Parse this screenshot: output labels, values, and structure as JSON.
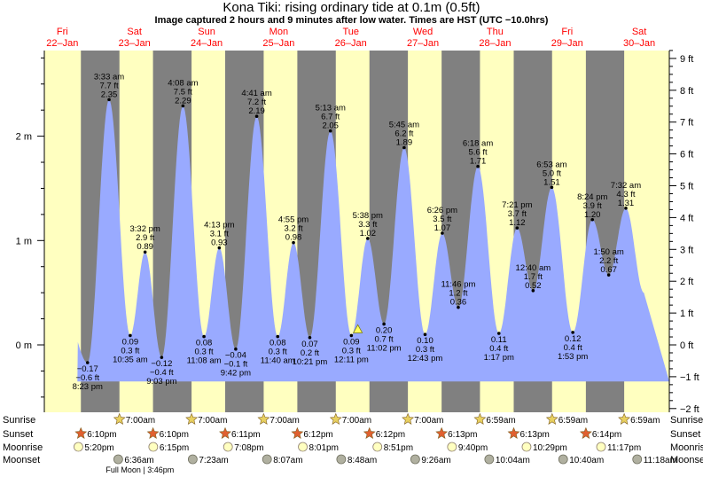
{
  "header": {
    "title": "Kona Tiki: rising  ordinary tide at 0.1m (0.5ft)",
    "subtitle": "Image captured 2 hours and 9 minutes after low water. Times are HST (UTC −10.0hrs)"
  },
  "chart_data": {
    "type": "area",
    "title": "Kona Tiki: rising  ordinary tide at 0.1m (0.5ft)",
    "days": [
      {
        "dow": "Fri",
        "date": "22–Jan"
      },
      {
        "dow": "Sat",
        "date": "23–Jan"
      },
      {
        "dow": "Sun",
        "date": "24–Jan"
      },
      {
        "dow": "Mon",
        "date": "25–Jan"
      },
      {
        "dow": "Tue",
        "date": "26–Jan"
      },
      {
        "dow": "Wed",
        "date": "27–Jan"
      },
      {
        "dow": "Thu",
        "date": "28–Jan"
      },
      {
        "dow": "Fri",
        "date": "29–Jan"
      },
      {
        "dow": "Sat",
        "date": "30–Jan"
      }
    ],
    "y_left": {
      "ticks": [
        "2 m",
        "1 m",
        "0 m"
      ],
      "values": [
        2,
        1,
        0
      ],
      "ylim_m": [
        -0.61,
        2.8
      ]
    },
    "y_right": {
      "ticks": [
        "9 ft",
        "8 ft",
        "7 ft",
        "6 ft",
        "5 ft",
        "4 ft",
        "3 ft",
        "2 ft",
        "1 ft",
        "0 ft",
        "−1 ft",
        "−2 ft"
      ],
      "values": [
        9,
        8,
        7,
        6,
        5,
        4,
        3,
        2,
        1,
        0,
        -1,
        -2
      ]
    },
    "day_hours_axis": {
      "start": "2021-01-22 06:00",
      "end": "2021-01-30 22:00"
    },
    "night_bands": [
      [
        "2021-01-22 18:10",
        "2021-01-23 07:00"
      ],
      [
        "2021-01-23 18:10",
        "2021-01-24 07:00"
      ],
      [
        "2021-01-24 18:11",
        "2021-01-25 07:00"
      ],
      [
        "2021-01-25 18:12",
        "2021-01-26 07:00"
      ],
      [
        "2021-01-26 18:12",
        "2021-01-27 07:00"
      ],
      [
        "2021-01-27 18:13",
        "2021-01-28 06:59"
      ],
      [
        "2021-01-28 18:13",
        "2021-01-29 06:59"
      ],
      [
        "2021-01-29 18:14",
        "2021-01-30 06:59"
      ]
    ],
    "tides": [
      {
        "t": "2021-01-22 20:23",
        "m": -0.17,
        "ft": "−0.6 ft",
        "time": "8:23 pm",
        "mlabel": "−0.17",
        "above": false
      },
      {
        "t": "2021-01-23 03:33",
        "m": 2.35,
        "ft": "7.7 ft",
        "time": "3:33 am",
        "mlabel": "2.35 m",
        "above": true
      },
      {
        "t": "2021-01-23 10:35",
        "m": 0.09,
        "ft": "0.3 ft",
        "time": "10:35 am",
        "mlabel": "0.09 m",
        "above": false
      },
      {
        "t": "2021-01-23 15:32",
        "m": 0.89,
        "ft": "2.9 ft",
        "time": "3:32 pm",
        "mlabel": "0.89 m",
        "above": true
      },
      {
        "t": "2021-01-23 21:03",
        "m": -0.12,
        "ft": "−0.4 ft",
        "time": "9:03 pm",
        "mlabel": "−0.12 m",
        "above": false
      },
      {
        "t": "2021-01-24 04:08",
        "m": 2.29,
        "ft": "7.5 ft",
        "time": "4:08 am",
        "mlabel": "2.29 m",
        "above": true
      },
      {
        "t": "2021-01-24 11:08",
        "m": 0.08,
        "ft": "0.3 ft",
        "time": "11:08 am",
        "mlabel": "0.08 m",
        "above": false
      },
      {
        "t": "2021-01-24 16:13",
        "m": 0.93,
        "ft": "3.1 ft",
        "time": "4:13 pm",
        "mlabel": "0.93 m",
        "above": true
      },
      {
        "t": "2021-01-24 21:42",
        "m": -0.04,
        "ft": "−0.1 ft",
        "time": "9:42 pm",
        "mlabel": "−0.04 m",
        "above": false
      },
      {
        "t": "2021-01-25 04:41",
        "m": 2.19,
        "ft": "7.2 ft",
        "time": "4:41 am",
        "mlabel": "2.19 m",
        "above": true
      },
      {
        "t": "2021-01-25 11:40",
        "m": 0.08,
        "ft": "0.3 ft",
        "time": "11:40 am",
        "mlabel": "0.08 m",
        "above": false
      },
      {
        "t": "2021-01-25 16:55",
        "m": 0.98,
        "ft": "3.2 ft",
        "time": "4:55 pm",
        "mlabel": "0.98 m",
        "above": true
      },
      {
        "t": "2021-01-25 22:21",
        "m": 0.07,
        "ft": "0.2 ft",
        "time": "10:21 pm",
        "mlabel": "0.07 m",
        "above": false
      },
      {
        "t": "2021-01-26 05:13",
        "m": 2.05,
        "ft": "6.7 ft",
        "time": "5:13 am",
        "mlabel": "2.05 m",
        "above": true
      },
      {
        "t": "2021-01-26 12:11",
        "m": 0.09,
        "ft": "0.3 ft",
        "time": "12:11 pm",
        "mlabel": "0.09 m",
        "above": false
      },
      {
        "t": "2021-01-26 17:38",
        "m": 1.02,
        "ft": "3.3 ft",
        "time": "5:38 pm",
        "mlabel": "1.02 m",
        "above": true
      },
      {
        "t": "2021-01-26 23:02",
        "m": 0.2,
        "ft": "0.7 ft",
        "time": "11:02 pm",
        "mlabel": "0.20 m",
        "above": false
      },
      {
        "t": "2021-01-27 05:45",
        "m": 1.89,
        "ft": "6.2 ft",
        "time": "5:45 am",
        "mlabel": "1.89 m",
        "above": true
      },
      {
        "t": "2021-01-27 12:43",
        "m": 0.1,
        "ft": "0.3 ft",
        "time": "12:43 pm",
        "mlabel": "0.10 m",
        "above": false
      },
      {
        "t": "2021-01-27 18:26",
        "m": 1.07,
        "ft": "3.5 ft",
        "time": "6:26 pm",
        "mlabel": "1.07 m",
        "above": true
      },
      {
        "t": "2021-01-27 23:46",
        "m": 0.36,
        "ft": "1.2 ft",
        "time": "11:46 pm",
        "mlabel": "0.36 m",
        "above": true
      },
      {
        "t": "2021-01-28 06:18",
        "m": 1.71,
        "ft": "5.6 ft",
        "time": "6:18 am",
        "mlabel": "1.71 m",
        "above": true
      },
      {
        "t": "2021-01-28 13:17",
        "m": 0.11,
        "ft": "0.4 ft",
        "time": "1:17 pm",
        "mlabel": "0.11 m",
        "above": false
      },
      {
        "t": "2021-01-28 19:21",
        "m": 1.12,
        "ft": "3.7 ft",
        "time": "7:21 pm",
        "mlabel": "1.12 m",
        "above": true
      },
      {
        "t": "2021-01-29 00:40",
        "m": 0.52,
        "ft": "1.7 ft",
        "time": "12:40 am",
        "mlabel": "0.52 m",
        "above": true
      },
      {
        "t": "2021-01-29 06:53",
        "m": 1.51,
        "ft": "5.0 ft",
        "time": "6:53 am",
        "mlabel": "1.51 m",
        "above": true
      },
      {
        "t": "2021-01-29 13:53",
        "m": 0.12,
        "ft": "0.4 ft",
        "time": "1:53 pm",
        "mlabel": "0.12 m",
        "above": false
      },
      {
        "t": "2021-01-29 20:24",
        "m": 1.2,
        "ft": "3.9 ft",
        "time": "8:24 pm",
        "mlabel": "1.20 m",
        "above": true
      },
      {
        "t": "2021-01-30 01:50",
        "m": 0.67,
        "ft": "2.2 ft",
        "time": "1:50 am",
        "mlabel": "0.67 m",
        "above": true
      },
      {
        "t": "2021-01-30 07:32",
        "m": 1.31,
        "ft": "4.3 ft",
        "time": "7:32 am",
        "mlabel": "1.31 m",
        "above": true
      }
    ],
    "current_marker": {
      "t": "2021-01-26 14:20",
      "m": 0.15
    },
    "rows": {
      "sunrise_label": "Sunrise",
      "sunset_label": "Sunset",
      "moonrise_label": "Moonrise",
      "moonset_label": "Moonset",
      "sunrise": [
        {
          "t": "2021-01-23 07:00",
          "text": "7:00am"
        },
        {
          "t": "2021-01-24 07:00",
          "text": "7:00am"
        },
        {
          "t": "2021-01-25 07:00",
          "text": "7:00am"
        },
        {
          "t": "2021-01-26 07:00",
          "text": "7:00am"
        },
        {
          "t": "2021-01-27 07:00",
          "text": "7:00am"
        },
        {
          "t": "2021-01-28 06:59",
          "text": "6:59am"
        },
        {
          "t": "2021-01-29 06:59",
          "text": "6:59am"
        },
        {
          "t": "2021-01-30 06:59",
          "text": "6:59am"
        }
      ],
      "sunset": [
        {
          "t": "2021-01-22 18:10",
          "text": "6:10pm"
        },
        {
          "t": "2021-01-23 18:10",
          "text": "6:10pm"
        },
        {
          "t": "2021-01-24 18:11",
          "text": "6:11pm"
        },
        {
          "t": "2021-01-25 18:12",
          "text": "6:12pm"
        },
        {
          "t": "2021-01-26 18:12",
          "text": "6:12pm"
        },
        {
          "t": "2021-01-27 18:13",
          "text": "6:13pm"
        },
        {
          "t": "2021-01-28 18:13",
          "text": "6:13pm"
        },
        {
          "t": "2021-01-29 18:14",
          "text": "6:14pm"
        }
      ],
      "moonrise": [
        {
          "t": "2021-01-22 17:20",
          "text": "5:20pm"
        },
        {
          "t": "2021-01-23 18:15",
          "text": "6:15pm"
        },
        {
          "t": "2021-01-24 19:08",
          "text": "7:08pm"
        },
        {
          "t": "2021-01-25 20:01",
          "text": "8:01pm"
        },
        {
          "t": "2021-01-26 20:51",
          "text": "8:51pm"
        },
        {
          "t": "2021-01-27 21:40",
          "text": "9:40pm"
        },
        {
          "t": "2021-01-28 22:29",
          "text": "10:29pm"
        },
        {
          "t": "2021-01-29 23:17",
          "text": "11:17pm"
        }
      ],
      "moonset": [
        {
          "t": "2021-01-23 06:36",
          "text": "6:36am"
        },
        {
          "t": "2021-01-24 07:23",
          "text": "7:23am"
        },
        {
          "t": "2021-01-25 08:07",
          "text": "8:07am"
        },
        {
          "t": "2021-01-26 08:48",
          "text": "8:48am"
        },
        {
          "t": "2021-01-27 09:26",
          "text": "9:26am"
        },
        {
          "t": "2021-01-28 10:04",
          "text": "10:04am"
        },
        {
          "t": "2021-01-29 10:40",
          "text": "10:40am"
        },
        {
          "t": "2021-01-30 11:18",
          "text": "11:18am"
        }
      ],
      "full_moon": {
        "t": "2021-01-23 06:36",
        "text": "Full Moon | 3:46pm"
      }
    },
    "colors": {
      "day": "#ffffc0",
      "night": "#808080",
      "water": "#99aaff",
      "date_text": "#ff0000",
      "sunrise_star": "#e8d060",
      "sunset_star": "#e06030",
      "moonrise": "#ffffc0",
      "moonset": "#b0b0a0"
    }
  }
}
